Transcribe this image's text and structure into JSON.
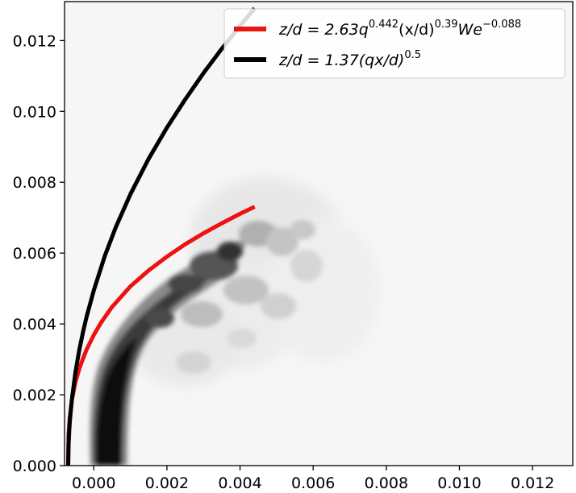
{
  "chart_data": {
    "type": "line",
    "title": "",
    "xlabel": "",
    "ylabel": "",
    "xlim": [
      -0.0008,
      0.0131
    ],
    "ylim": [
      0.0,
      0.0131
    ],
    "x_ticks": [
      0.0,
      0.002,
      0.004,
      0.006,
      0.008,
      0.01,
      0.012
    ],
    "x_tick_labels": [
      "0.000",
      "0.002",
      "0.004",
      "0.006",
      "0.008",
      "0.010",
      "0.012"
    ],
    "y_ticks": [
      0.0,
      0.002,
      0.004,
      0.006,
      0.008,
      0.01,
      0.012
    ],
    "y_tick_labels": [
      "0.000",
      "0.002",
      "0.004",
      "0.006",
      "0.008",
      "0.010",
      "0.012"
    ],
    "grid": false,
    "legend_position": "top-right",
    "background": "grayscale jet spray density field",
    "series": [
      {
        "name": "z/d = 2.63q^0.442(x/d)^0.39We^-0.088",
        "legend": {
          "base": "z/d = 2.63q",
          "sup1": "0.442",
          "mid": "(x/d)",
          "sup2": "0.39",
          "tail": "We",
          "sup3": "−0.088"
        },
        "color": "#ee1111",
        "x": [
          -0.0007,
          -0.00069,
          -0.00066,
          -0.0006,
          -0.0005,
          -0.0004,
          -0.0003,
          -0.0002,
          0.0,
          0.0002,
          0.0005,
          0.001,
          0.0015,
          0.002,
          0.0025,
          0.003,
          0.0035,
          0.004,
          0.0044
        ],
        "y": [
          0.0,
          0.00086,
          0.00132,
          0.00186,
          0.00236,
          0.00272,
          0.00301,
          0.00327,
          0.00369,
          0.00404,
          0.00448,
          0.00506,
          0.00551,
          0.0059,
          0.00625,
          0.00656,
          0.00684,
          0.00711,
          0.00731
        ]
      },
      {
        "name": "z/d = 1.37(qx/d)^0.5",
        "legend": {
          "base": "z/d = 1.37(qx/d)",
          "sup1": "0.5"
        },
        "color": "#000000",
        "x": [
          -0.0007,
          -0.00069,
          -0.00067,
          -0.00065,
          -0.0006,
          -0.0005,
          -0.0004,
          -0.0003,
          -0.0002,
          0.0,
          0.0003,
          0.0006,
          0.001,
          0.0015,
          0.002,
          0.0025,
          0.003,
          0.0035,
          0.004,
          0.0044
        ],
        "y": [
          0.0,
          0.00059,
          0.00102,
          0.00132,
          0.00187,
          0.00265,
          0.00324,
          0.00375,
          0.00419,
          0.00495,
          0.00592,
          0.00673,
          0.00766,
          0.00866,
          0.00954,
          0.01034,
          0.01108,
          0.01177,
          0.01242,
          0.01291
        ]
      }
    ]
  }
}
